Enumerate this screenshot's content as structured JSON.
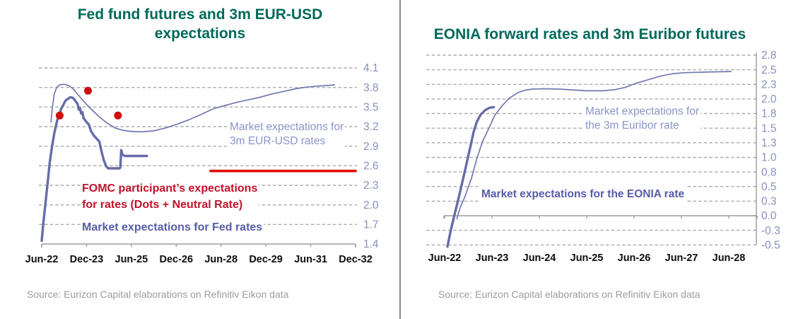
{
  "page": {
    "source_left": "Source: Eurizon Capital elaborations on Refinitiv Eikon data",
    "source_right": "Source: Eurizon Capital elaborations on Refinitiv Eikon data"
  },
  "colors": {
    "title_green": "#00695a",
    "grid_grey": "#ababab",
    "axis_grey": "#9b9b9b",
    "x_label_black": "#0d0d0d",
    "y_label_blue": "#8790bf",
    "annotation_periwinkle": "#8a94c9",
    "annotation_purple": "#565ca8",
    "annotation_red": "#c3112b",
    "line_purple_thick": "#666ca8",
    "line_purple_thin": "#7278b2",
    "dot_red": "#cf0d0d",
    "neutral_red": "#df0a0a",
    "source_grey": "#9c9c9c",
    "divider_grey": "#878787"
  },
  "left_chart": {
    "title_lines": [
      "Fed fund futures and 3m EUR-USD",
      "expectations"
    ],
    "label_eur_usd_line1": "Market expectations for",
    "label_eur_usd_line2": "3m EUR-USD rates",
    "label_fomc_line1": "FOMC participant’s expectations",
    "label_fomc_line2": "for rates (Dots + Neutral Rate)",
    "label_fed": "Market expectations for Fed rates"
  },
  "right_chart": {
    "title": "EONIA forward rates and 3m Euribor futures",
    "label_euribor_line1": "Market expectations for",
    "label_euribor_line2": "the 3m Euribor rate",
    "label_eonia": "Market expectations for the EONIA rate"
  },
  "chart_data": [
    {
      "type": "line",
      "title": "Fed fund futures and 3m EUR-USD expectations",
      "x_axis": {
        "unit": "years from Jun-2022",
        "range": [
          0,
          10.5
        ],
        "ticks": [
          {
            "t": 0.0,
            "label": "Jun-22"
          },
          {
            "t": 1.5,
            "label": "Dec-23"
          },
          {
            "t": 3.0,
            "label": "Jun-25"
          },
          {
            "t": 4.5,
            "label": "Dec-26"
          },
          {
            "t": 6.0,
            "label": "Jun-28"
          },
          {
            "t": 7.5,
            "label": "Dec-29"
          },
          {
            "t": 9.0,
            "label": "Jun-31"
          },
          {
            "t": 10.5,
            "label": "Dec-32"
          }
        ]
      },
      "y_axis": {
        "range": [
          1.4,
          4.1
        ],
        "grid": "dashed",
        "ticks": [
          {
            "value": 4.1,
            "label": "4.1",
            "grid": true
          },
          {
            "value": 3.8,
            "label": "3.8",
            "grid": true
          },
          {
            "value": 3.5,
            "label": "3.5",
            "grid": true
          },
          {
            "value": 3.2,
            "label": "3.2",
            "grid": true
          },
          {
            "value": 2.9,
            "label": "2.9",
            "grid": true
          },
          {
            "value": 2.6,
            "label": "2.6",
            "grid": true
          },
          {
            "value": 2.3,
            "label": "2.3",
            "grid": true
          },
          {
            "value": 2.0,
            "label": "2.0",
            "grid": true
          },
          {
            "value": 1.7,
            "label": "1.7",
            "grid": true
          },
          {
            "value": 1.4,
            "label": "1.4",
            "grid": false
          }
        ]
      },
      "series": [
        {
          "name": "Market expectations for Fed rates",
          "color": "#666ca8",
          "width": 3.4,
          "points": [
            [
              0,
              1.45
            ],
            [
              0.05,
              1.7
            ],
            [
              0.12,
              2.0
            ],
            [
              0.2,
              2.35
            ],
            [
              0.27,
              2.65
            ],
            [
              0.33,
              2.85
            ],
            [
              0.42,
              3.1
            ],
            [
              0.52,
              3.3
            ],
            [
              0.65,
              3.47
            ],
            [
              0.8,
              3.6
            ],
            [
              0.95,
              3.65
            ],
            [
              1.05,
              3.64
            ],
            [
              1.15,
              3.58
            ],
            [
              1.2,
              3.55
            ],
            [
              1.24,
              3.46
            ],
            [
              1.28,
              3.49
            ],
            [
              1.32,
              3.4
            ],
            [
              1.36,
              3.42
            ],
            [
              1.4,
              3.33
            ],
            [
              1.5,
              3.27
            ],
            [
              1.58,
              3.23
            ],
            [
              1.65,
              3.13
            ],
            [
              1.75,
              3.06
            ],
            [
              1.85,
              3.01
            ],
            [
              1.93,
              2.97
            ],
            [
              2.0,
              2.82
            ],
            [
              2.08,
              2.68
            ],
            [
              2.16,
              2.59
            ],
            [
              2.22,
              2.56
            ],
            [
              2.6,
              2.56
            ],
            [
              2.63,
              2.57
            ],
            [
              2.66,
              2.84
            ],
            [
              2.7,
              2.77
            ],
            [
              2.78,
              2.75
            ],
            [
              3.2,
              2.75
            ],
            [
              3.52,
              2.75
            ]
          ]
        },
        {
          "name": "Market expectations for 3m EUR-USD rates",
          "color": "#7278b2",
          "width": 1.7,
          "points": [
            [
              0.31,
              3.27
            ],
            [
              0.36,
              3.5
            ],
            [
              0.42,
              3.7
            ],
            [
              0.5,
              3.8
            ],
            [
              0.6,
              3.84
            ],
            [
              0.75,
              3.85
            ],
            [
              0.9,
              3.83
            ],
            [
              1.05,
              3.78
            ],
            [
              1.25,
              3.67
            ],
            [
              1.5,
              3.54
            ],
            [
              1.72,
              3.44
            ],
            [
              1.95,
              3.34
            ],
            [
              2.2,
              3.25
            ],
            [
              2.45,
              3.18
            ],
            [
              2.7,
              3.145
            ],
            [
              3.0,
              3.125
            ],
            [
              3.35,
              3.12
            ],
            [
              3.75,
              3.135
            ],
            [
              4.15,
              3.18
            ],
            [
              4.55,
              3.24
            ],
            [
              4.95,
              3.31
            ],
            [
              5.35,
              3.39
            ],
            [
              5.72,
              3.47
            ],
            [
              6.1,
              3.52
            ],
            [
              6.5,
              3.57
            ],
            [
              6.9,
              3.61
            ],
            [
              7.3,
              3.65
            ],
            [
              7.7,
              3.7
            ],
            [
              8.1,
              3.74
            ],
            [
              8.5,
              3.78
            ],
            [
              8.85,
              3.805
            ],
            [
              9.2,
              3.82
            ],
            [
              9.55,
              3.83
            ],
            [
              9.8,
              3.84
            ]
          ]
        },
        {
          "name": "FOMC Neutral Rate",
          "color": "#df0a0a",
          "width": 3.6,
          "points": [
            [
              5.65,
              2.52
            ],
            [
              10.5,
              2.52
            ]
          ]
        }
      ],
      "dots": {
        "name": "FOMC participants dots",
        "color": "#cf0d0d",
        "radius": 5.5,
        "points": [
          [
            0.6,
            3.37
          ],
          [
            1.55,
            3.75
          ],
          [
            2.55,
            3.37
          ]
        ]
      }
    },
    {
      "type": "line",
      "title": "EONIA forward rates and 3m Euribor futures",
      "x_axis": {
        "unit": "years from Jun-2022",
        "range": [
          0,
          6.6
        ],
        "ticks": [
          {
            "t": 0,
            "label": "Jun-22"
          },
          {
            "t": 1,
            "label": "Jun-23"
          },
          {
            "t": 2,
            "label": "Jun-24"
          },
          {
            "t": 3,
            "label": "Jun-25"
          },
          {
            "t": 4,
            "label": "Jun-26"
          },
          {
            "t": 5,
            "label": "Jun-27"
          },
          {
            "t": 6,
            "label": "Jun-28"
          }
        ]
      },
      "y_axis": {
        "range": [
          -0.5,
          2.8
        ],
        "grid": "dashed",
        "ticks": [
          {
            "value": 2.75,
            "label": "2.8",
            "grid": true
          },
          {
            "value": 2.5,
            "label": "2.5",
            "grid": true
          },
          {
            "value": 2.25,
            "label": "2.3",
            "grid": true
          },
          {
            "value": 2.0,
            "label": "2.0",
            "grid": true
          },
          {
            "value": 1.75,
            "label": "1.8",
            "grid": true
          },
          {
            "value": 1.5,
            "label": "1.5",
            "grid": true
          },
          {
            "value": 1.25,
            "label": "1.3",
            "grid": true
          },
          {
            "value": 1.0,
            "label": "1.0",
            "grid": true
          },
          {
            "value": 0.75,
            "label": "0.8",
            "grid": true
          },
          {
            "value": 0.5,
            "label": "0.5",
            "grid": true
          },
          {
            "value": 0.25,
            "label": "0.3",
            "grid": true
          },
          {
            "value": 0.0,
            "label": "0.0",
            "grid": false
          },
          {
            "value": -0.25,
            "label": "-0.3",
            "grid": true
          },
          {
            "value": -0.5,
            "label": "-0.5",
            "grid": true
          }
        ]
      },
      "series": [
        {
          "name": "Market expectations for the EONIA rate",
          "color": "#666ca8",
          "width": 3.4,
          "points": [
            [
              0.06,
              -0.53
            ],
            [
              0.13,
              -0.25
            ],
            [
              0.21,
              0.02
            ],
            [
              0.3,
              0.32
            ],
            [
              0.38,
              0.6
            ],
            [
              0.46,
              0.88
            ],
            [
              0.54,
              1.17
            ],
            [
              0.61,
              1.43
            ],
            [
              0.68,
              1.61
            ],
            [
              0.76,
              1.73
            ],
            [
              0.86,
              1.81
            ],
            [
              0.95,
              1.85
            ],
            [
              1.04,
              1.86
            ]
          ]
        },
        {
          "name": "Market expectations for the 3m Euribor rate",
          "color": "#7278b2",
          "width": 1.7,
          "points": [
            [
              0.26,
              -0.05
            ],
            [
              0.32,
              0.12
            ],
            [
              0.43,
              0.33
            ],
            [
              0.57,
              0.65
            ],
            [
              0.68,
              0.98
            ],
            [
              0.8,
              1.27
            ],
            [
              0.94,
              1.51
            ],
            [
              1.06,
              1.72
            ],
            [
              1.21,
              1.88
            ],
            [
              1.36,
              2.01
            ],
            [
              1.55,
              2.11
            ],
            [
              1.7,
              2.15
            ],
            [
              1.86,
              2.17
            ],
            [
              2.1,
              2.175
            ],
            [
              2.4,
              2.17
            ],
            [
              2.7,
              2.155
            ],
            [
              3.0,
              2.14
            ],
            [
              3.35,
              2.14
            ],
            [
              3.6,
              2.16
            ],
            [
              3.82,
              2.2
            ],
            [
              4.05,
              2.27
            ],
            [
              4.3,
              2.33
            ],
            [
              4.55,
              2.39
            ],
            [
              4.8,
              2.43
            ],
            [
              5.05,
              2.45
            ],
            [
              5.5,
              2.46
            ],
            [
              6.05,
              2.47
            ]
          ]
        }
      ]
    }
  ]
}
